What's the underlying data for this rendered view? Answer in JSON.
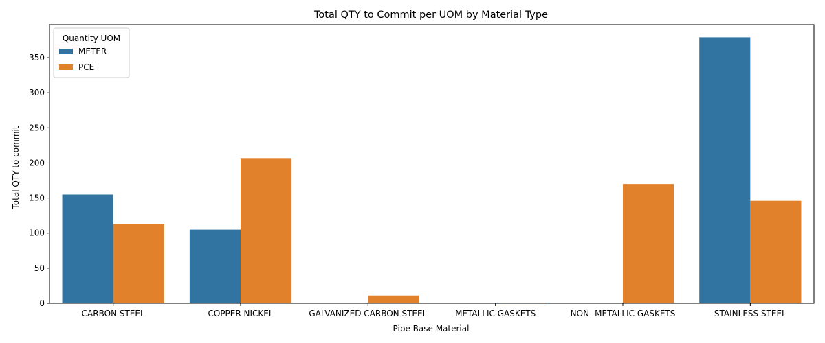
{
  "chart_data": {
    "type": "bar",
    "title": "Total QTY to Commit per UOM by Material Type",
    "xlabel": "Pipe Base Material",
    "ylabel": "Total QTY to commit",
    "categories": [
      "CARBON STEEL",
      "COPPER-NICKEL",
      "GALVANIZED CARBON STEEL",
      "METALLIC GASKETS",
      "NON- METALLIC GASKETS",
      "STAINLESS STEEL"
    ],
    "series": [
      {
        "name": "METER",
        "color": "#3274a1",
        "values": [
          155,
          105,
          0,
          0,
          0,
          379
        ]
      },
      {
        "name": "PCE",
        "color": "#e1812c",
        "values": [
          113,
          206,
          11,
          1,
          170,
          146
        ]
      }
    ],
    "ylim": [
      0,
      397
    ],
    "yticks": [
      "0",
      "50",
      "100",
      "150",
      "200",
      "250",
      "300",
      "350"
    ],
    "legend": {
      "title": "Quantity UOM",
      "position": "top-left"
    },
    "grid": false
  }
}
